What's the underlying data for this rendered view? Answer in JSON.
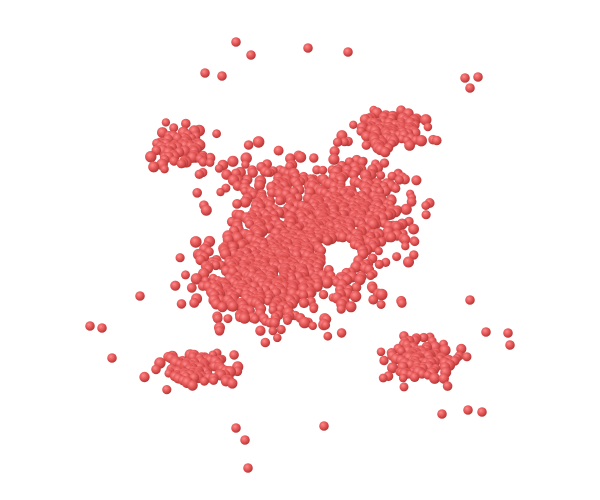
{
  "scene": {
    "background_color": "#ffffff",
    "particle_color": "#e05252",
    "particle_highlight": "#ff8a8a",
    "particle_shadow": "#a83434",
    "description_shape": "dense-cluster"
  }
}
